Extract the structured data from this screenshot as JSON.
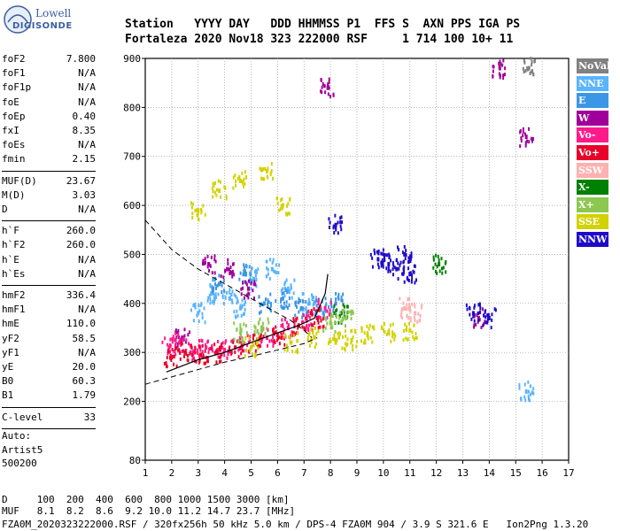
{
  "logo": {
    "line1": "Lowell",
    "line2": "DIGISONDE"
  },
  "header": {
    "row1": "Station   YYYY DAY   DDD HHMMSS P1  FFS S  AXN PPS IGA PS",
    "row2": "Fortaleza 2020 Nov18 323 222000 RSF     1 714 100 10+ 11"
  },
  "params": {
    "groups": [
      [
        {
          "name": "foF2",
          "value": "7.800"
        },
        {
          "name": "foF1",
          "value": "N/A"
        },
        {
          "name": "foF1p",
          "value": "N/A"
        },
        {
          "name": "foE",
          "value": "N/A"
        },
        {
          "name": "foEp",
          "value": "0.40"
        },
        {
          "name": "fxI",
          "value": "8.35"
        },
        {
          "name": "foEs",
          "value": "N/A"
        },
        {
          "name": "fmin",
          "value": "2.15"
        }
      ],
      [
        {
          "name": "MUF(D)",
          "value": "23.67"
        },
        {
          "name": "M(D)",
          "value": "3.03"
        },
        {
          "name": "D",
          "value": "N/A"
        }
      ],
      [
        {
          "name": "h`F",
          "value": "260.0"
        },
        {
          "name": "h`F2",
          "value": "260.0"
        },
        {
          "name": "h`E",
          "value": "N/A"
        },
        {
          "name": "h`Es",
          "value": "N/A"
        }
      ],
      [
        {
          "name": "hmF2",
          "value": "336.4"
        },
        {
          "name": "hmF1",
          "value": "N/A"
        },
        {
          "name": "hmE",
          "value": "110.0"
        },
        {
          "name": "yF2",
          "value": "58.5"
        },
        {
          "name": "yF1",
          "value": "N/A"
        },
        {
          "name": "yE",
          "value": "20.0"
        },
        {
          "name": "B0",
          "value": "60.3"
        },
        {
          "name": "B1",
          "value": "1.79"
        }
      ],
      [
        {
          "name": "C-level",
          "value": "33"
        }
      ]
    ]
  },
  "auto": {
    "line1": "Auto:",
    "line2": "Artist5",
    "line3": "500200"
  },
  "legend": [
    {
      "label": "NoVal",
      "color": "#808080"
    },
    {
      "label": "NNE",
      "color": "#5ab4ff"
    },
    {
      "label": "E",
      "color": "#3c96e6"
    },
    {
      "label": "W",
      "color": "#a0009a"
    },
    {
      "label": "Vo-",
      "color": "#ff1a8c"
    },
    {
      "label": "Vo+",
      "color": "#e8002a"
    },
    {
      "label": "SSW",
      "color": "#ffb0b0"
    },
    {
      "label": "X-",
      "color": "#008000"
    },
    {
      "label": "X+",
      "color": "#8cc850"
    },
    {
      "label": "SSE",
      "color": "#d2d200"
    },
    {
      "label": "NNW",
      "color": "#1e0ac8"
    }
  ],
  "chart_data": {
    "type": "scatter",
    "title": "",
    "xlabel": "",
    "ylabel": "",
    "xlim": [
      1,
      17
    ],
    "ylim": [
      80,
      900
    ],
    "x_ticks": [
      1,
      2,
      3,
      4,
      5,
      6,
      7,
      8,
      9,
      10,
      11,
      12,
      13,
      14,
      15,
      16,
      17
    ],
    "y_ticks": [
      80,
      200,
      300,
      400,
      500,
      600,
      700,
      800,
      900
    ],
    "grid": "dotted",
    "series": [
      {
        "name": "NoVal",
        "color": "#808080",
        "points": [
          [
            15.5,
            880
          ]
        ]
      },
      {
        "name": "NNE",
        "color": "#5ab4ff",
        "points": [
          [
            3.5,
            420
          ],
          [
            4.2,
            410
          ],
          [
            5.1,
            450
          ],
          [
            5.8,
            470
          ],
          [
            6.4,
            430
          ],
          [
            3.0,
            380
          ],
          [
            4.6,
            390
          ],
          [
            7.2,
            400
          ],
          [
            15.4,
            220
          ]
        ]
      },
      {
        "name": "E",
        "color": "#3c96e6",
        "points": [
          [
            3.8,
            440
          ],
          [
            4.8,
            460
          ],
          [
            5.5,
            400
          ],
          [
            6.2,
            410
          ],
          [
            6.9,
            390
          ],
          [
            7.6,
            390
          ],
          [
            8.2,
            400
          ]
        ]
      },
      {
        "name": "W",
        "color": "#a0009a",
        "points": [
          [
            3.4,
            480
          ],
          [
            4.1,
            470
          ],
          [
            4.9,
            430
          ],
          [
            7.9,
            840
          ],
          [
            14.4,
            880
          ],
          [
            15.4,
            740
          ],
          [
            13.6,
            370
          ],
          [
            2.4,
            330
          ]
        ]
      },
      {
        "name": "Vo-",
        "color": "#ff1a8c",
        "points": [
          [
            1.9,
            310
          ],
          [
            2.3,
            320
          ],
          [
            2.8,
            300
          ],
          [
            3.3,
            310
          ],
          [
            4.0,
            305
          ],
          [
            4.7,
            320
          ],
          [
            5.6,
            330
          ],
          [
            6.4,
            350
          ],
          [
            7.1,
            365
          ],
          [
            7.8,
            390
          ]
        ]
      },
      {
        "name": "Vo+",
        "color": "#e8002a",
        "points": [
          [
            2.0,
            290
          ],
          [
            2.5,
            300
          ],
          [
            3.1,
            295
          ],
          [
            3.7,
            300
          ],
          [
            4.4,
            310
          ],
          [
            5.2,
            320
          ],
          [
            6.0,
            335
          ],
          [
            6.8,
            355
          ],
          [
            7.5,
            370
          ]
        ]
      },
      {
        "name": "SSW",
        "color": "#ffb0b0",
        "points": [
          [
            10.8,
            390
          ],
          [
            11.2,
            380
          ]
        ]
      },
      {
        "name": "X-",
        "color": "#008000",
        "points": [
          [
            8.4,
            380
          ],
          [
            12.1,
            480
          ]
        ]
      },
      {
        "name": "X+",
        "color": "#8cc850",
        "points": [
          [
            4.6,
            340
          ],
          [
            5.4,
            350
          ],
          [
            8.0,
            360
          ],
          [
            8.6,
            370
          ]
        ]
      },
      {
        "name": "SSE",
        "color": "#d2d200",
        "points": [
          [
            3.0,
            590
          ],
          [
            3.8,
            630
          ],
          [
            4.6,
            650
          ],
          [
            5.6,
            670
          ],
          [
            6.2,
            600
          ],
          [
            7.4,
            330
          ],
          [
            8.2,
            320
          ],
          [
            8.8,
            325
          ],
          [
            9.4,
            335
          ],
          [
            10.2,
            340
          ],
          [
            11.0,
            345
          ],
          [
            5.0,
            310
          ],
          [
            6.5,
            320
          ]
        ]
      },
      {
        "name": "NNW",
        "color": "#1e0ac8",
        "points": [
          [
            9.8,
            490
          ],
          [
            10.2,
            480
          ],
          [
            10.5,
            470
          ],
          [
            10.8,
            500
          ],
          [
            11.0,
            460
          ],
          [
            8.2,
            560
          ],
          [
            13.4,
            380
          ],
          [
            14.0,
            370
          ]
        ]
      }
    ]
  },
  "bottom": {
    "d_row": "D     100  200  400  600  800 1000 1500 3000 [km]",
    "muf_row": "MUF   8.1  8.2  8.6  9.2 10.0 11.2 14.7 23.7 [MHz]",
    "file_row": "FZA0M_2020323222000.RSF / 320fx256h 50 kHz 5.0 km / DPS-4 FZA0M 904 / 3.9 S 321.6 E   Ion2Png 1.3.20"
  }
}
